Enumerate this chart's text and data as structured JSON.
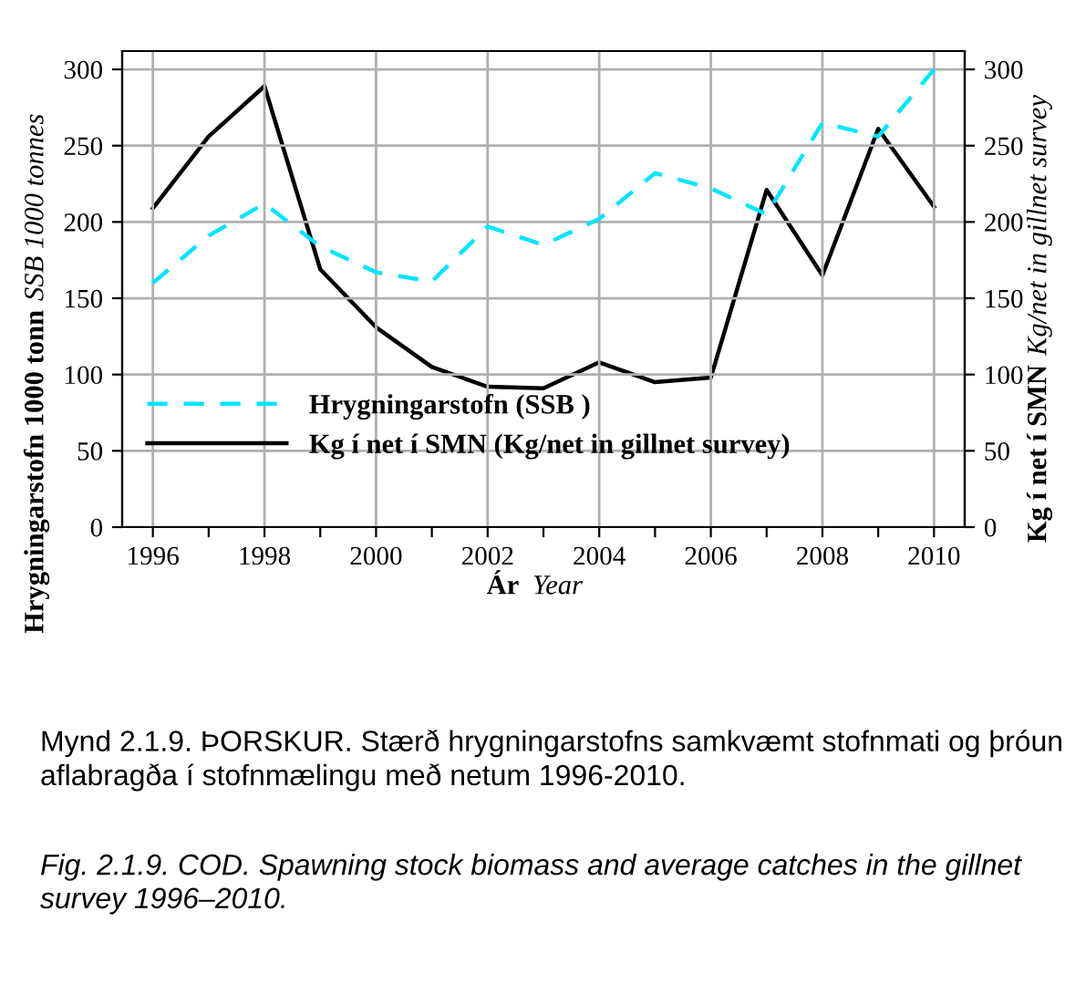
{
  "chart_data": {
    "type": "line",
    "xlabel": "Ár  Year",
    "ylabel": "Hrygningarstofn 1000 tonn  SSB 1000 tonnes",
    "y2label": "Kg í net í SMN  Kg/net in gillnet survey",
    "x": [
      1996,
      1997,
      1998,
      1999,
      2000,
      2001,
      2002,
      2003,
      2004,
      2005,
      2006,
      2007,
      2008,
      2009,
      2010
    ],
    "series": [
      {
        "name": "Hrygningarstofn (SSB )",
        "color": "#00e5ff",
        "line_style": "dashed",
        "values": [
          160,
          191,
          212,
          184,
          167,
          161,
          197,
          185,
          202,
          232,
          222,
          205,
          265,
          256,
          300
        ]
      },
      {
        "name": "Kg í net í SMN (Kg/net in gillnet survey)",
        "color": "#000000",
        "line_style": "solid",
        "axis": "y2",
        "values": [
          209,
          256,
          289,
          169,
          131,
          105,
          92,
          91,
          108,
          95,
          98,
          221,
          165,
          261,
          210
        ]
      }
    ],
    "xlim": [
      1995.45,
      2010.55
    ],
    "ylim": [
      0,
      312
    ],
    "y2lim": [
      0,
      312
    ],
    "xticks": [
      1996,
      {
        "value": 1997,
        "label": null
      },
      1998,
      {
        "value": 1999,
        "label": null
      },
      2000,
      {
        "value": 2001,
        "label": null
      },
      2002,
      {
        "value": 2003,
        "label": null
      },
      2004,
      {
        "value": 2005,
        "label": null
      },
      2006,
      {
        "value": 2007,
        "label": null
      },
      2008,
      {
        "value": 2009,
        "label": null
      },
      2010
    ],
    "yticks": [
      0,
      50,
      100,
      150,
      200,
      250,
      300
    ],
    "y2ticks": [
      0,
      50,
      100,
      150,
      200,
      250,
      300
    ],
    "grid": true,
    "legend": "bottom left",
    "annotations": [
      "Mynd 2.1.9. ÞORSKUR. Stærð hrygningarstofns samkvæmt stofnmati og þróun aflabragða í stofnmælingu með netum 1996-2010.",
      "Fig. 2.1.9. COD. Spawning stock biomass and average catches in the gillnet survey 1996–2010."
    ]
  }
}
